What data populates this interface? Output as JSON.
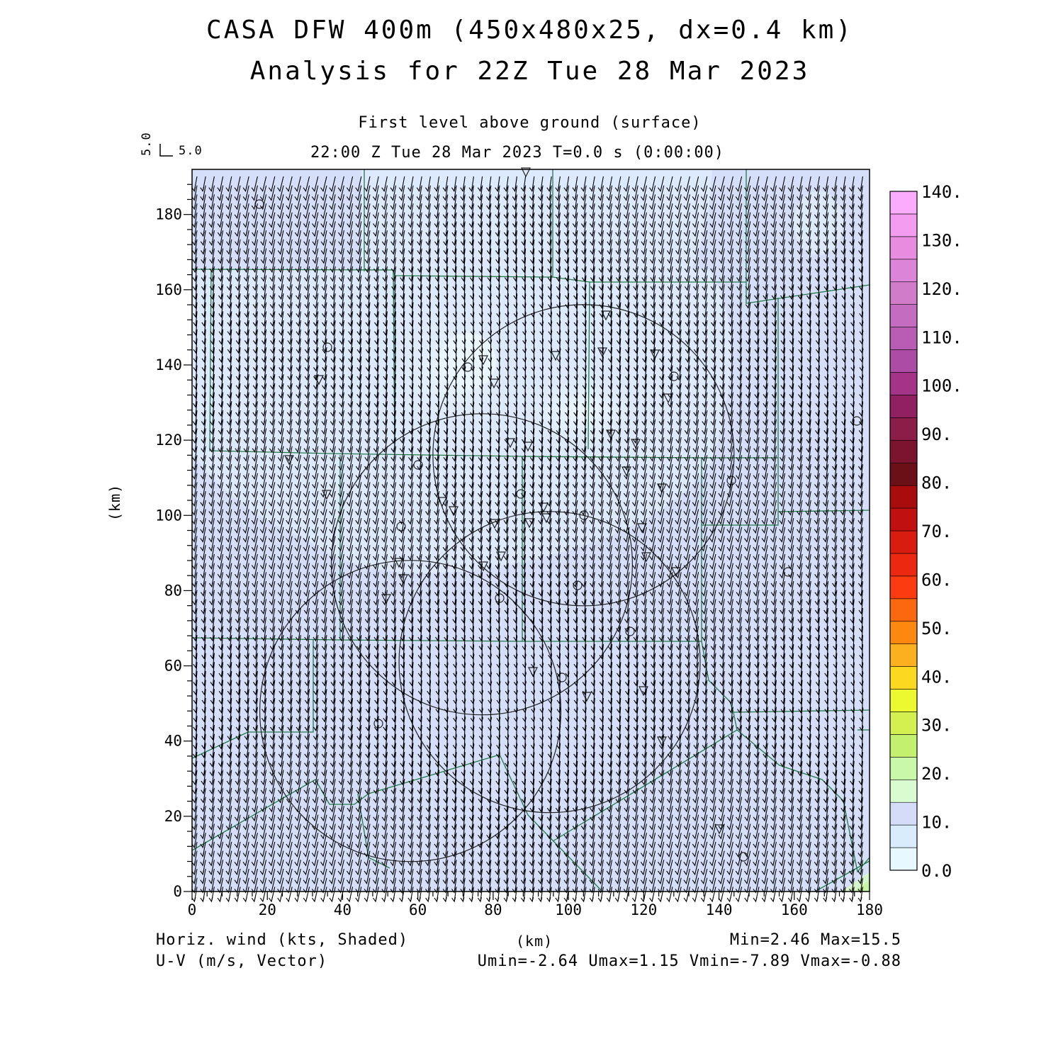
{
  "header": {
    "title_line1": "CASA DFW 400m (450x480x25, dx=0.4 km)",
    "title_line2": "Analysis for 22Z Tue 28 Mar 2023",
    "subtitle_line1": "First level above ground (surface)",
    "subtitle_line2": "22:00 Z Tue 28 Mar 2023   T=0.0 s (0:00:00)"
  },
  "vector_reference": {
    "u": "5.0",
    "v": "5.0"
  },
  "axes": {
    "xlabel": "(km)",
    "ylabel": "(km)",
    "x_ticks": [
      "0",
      "20",
      "40",
      "60",
      "80",
      "100",
      "120",
      "140",
      "160",
      "180"
    ],
    "y_ticks": [
      "0",
      "20",
      "40",
      "60",
      "80",
      "100",
      "120",
      "140",
      "160",
      "180"
    ]
  },
  "footer": {
    "shade_label": "Horiz. wind (kts, Shaded)",
    "vector_label": "U-V (m/s, Vector)",
    "minmax": "Min=2.46 Max=15.5",
    "uv_stats": "Umin=-2.64 Umax=1.15 Vmin=-7.89 Vmax=-0.88"
  },
  "colorbar": {
    "labels": [
      "0.0",
      "10.",
      "20.",
      "30.",
      "40.",
      "50.",
      "60.",
      "70.",
      "80.",
      "90.",
      "100.",
      "110.",
      "120.",
      "130.",
      "140."
    ],
    "colors": [
      "#e8f8ff",
      "#d8ecfc",
      "#d4dcf8",
      "#d8fcd0",
      "#c8f8a8",
      "#c4f070",
      "#d4f050",
      "#ecf830",
      "#fcd820",
      "#fcb020",
      "#fc8810",
      "#fc6810",
      "#fc3c10",
      "#ec2810",
      "#d81c10",
      "#c01010",
      "#a80c0c",
      "#6c1018",
      "#7c1430",
      "#8c1c48",
      "#902060",
      "#a43488",
      "#ac4ca4",
      "#b85cb4",
      "#c46cc0",
      "#d07cc8",
      "#dc84d8",
      "#e88ce0",
      "#f49cf0",
      "#fcacfc"
    ]
  },
  "chart_data": {
    "type": "map",
    "field": "Horiz. wind (kts, Shaded)",
    "vectors": "U-V (m/s, Vector)",
    "x_range_km": [
      0,
      180
    ],
    "y_range_km": [
      0,
      192
    ],
    "shading_range": [
      0,
      140
    ],
    "shading_interval": 5,
    "mean_vector_ms": {
      "u": -0.6,
      "v": -4.5
    },
    "min": 2.46,
    "max": 15.5,
    "umin": -2.64,
    "umax": 1.15,
    "vmin": -7.89,
    "vmax": -0.88,
    "radar_rings_km": [
      {
        "x": 104,
        "y": 116,
        "r": 40
      },
      {
        "x": 77,
        "y": 87,
        "r": 40
      },
      {
        "x": 95,
        "y": 61,
        "r": 40
      },
      {
        "x": 58,
        "y": 48,
        "r": 40
      }
    ]
  }
}
